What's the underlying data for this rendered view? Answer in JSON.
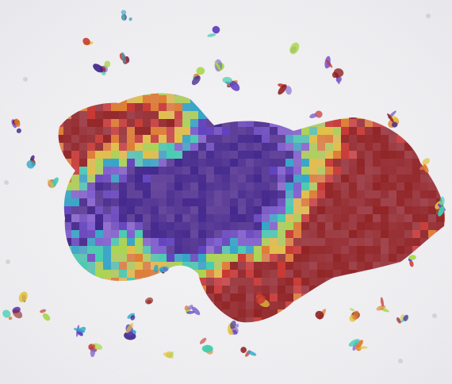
{
  "image": {
    "kind": "tissue heatmap overlay (attention map on histology slide)",
    "background_color": "#f2f1f3",
    "colormap": [
      "#3a1f8a",
      "#5a3bbf",
      "#7a5ad0",
      "#2aa6c8",
      "#3ecfb0",
      "#a8d84a",
      "#e5c23a",
      "#e07a2a",
      "#c8322a",
      "#8e1c1c"
    ],
    "tissue_tint": "#b86aa6"
  }
}
